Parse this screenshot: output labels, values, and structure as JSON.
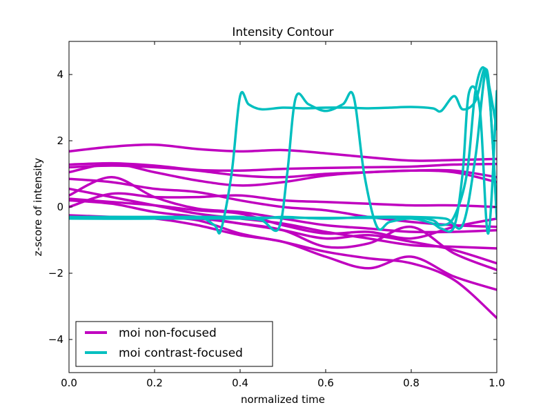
{
  "chart_data": {
    "type": "line",
    "title": "Intensity Contour",
    "xlabel": "normalized time",
    "ylabel": "z-score of intensity",
    "xlim": [
      0.0,
      1.0
    ],
    "ylim": [
      -5,
      5
    ],
    "x_ticks": [
      0.0,
      0.2,
      0.4,
      0.6,
      0.8,
      1.0
    ],
    "x_tick_labels": [
      "0.0",
      "0.2",
      "0.4",
      "0.6",
      "0.8",
      "1.0"
    ],
    "y_ticks": [
      -4,
      -2,
      0,
      2,
      4
    ],
    "y_tick_labels": [
      "−4",
      "−2",
      "0",
      "2",
      "4"
    ],
    "grid": false,
    "legend_position": "lower-left",
    "legend": [
      {
        "label": "moi non-focused",
        "color": "#bf00bf"
      },
      {
        "label": "moi contrast-focused",
        "color": "#00bfbf"
      }
    ],
    "series": [
      {
        "group": 0,
        "color": "#bf00bf",
        "x": [
          0.0,
          0.1,
          0.2,
          0.3,
          0.4,
          0.5,
          0.6,
          0.7,
          0.8,
          0.9,
          1.0
        ],
        "y": [
          1.68,
          1.82,
          1.88,
          1.75,
          1.68,
          1.72,
          1.62,
          1.5,
          1.4,
          1.42,
          1.45
        ]
      },
      {
        "group": 0,
        "color": "#bf00bf",
        "x": [
          0.0,
          0.1,
          0.2,
          0.3,
          0.4,
          0.5,
          0.6,
          0.7,
          0.8,
          0.9,
          1.0
        ],
        "y": [
          1.28,
          1.32,
          1.25,
          1.12,
          1.1,
          1.15,
          1.18,
          1.2,
          1.22,
          1.28,
          1.3
        ]
      },
      {
        "group": 0,
        "color": "#bf00bf",
        "x": [
          0.0,
          0.1,
          0.2,
          0.3,
          0.4,
          0.5,
          0.6,
          0.7,
          0.8,
          0.9,
          1.0
        ],
        "y": [
          1.2,
          1.25,
          1.2,
          1.1,
          0.95,
          0.9,
          1.0,
          1.05,
          1.1,
          1.1,
          0.9
        ]
      },
      {
        "group": 0,
        "color": "#bf00bf",
        "x": [
          0.0,
          0.1,
          0.2,
          0.3,
          0.4,
          0.5,
          0.6,
          0.7,
          0.8,
          0.9,
          1.0
        ],
        "y": [
          1.05,
          1.3,
          1.05,
          0.8,
          0.65,
          0.75,
          0.95,
          1.05,
          1.1,
          1.05,
          0.75
        ]
      },
      {
        "group": 0,
        "color": "#bf00bf",
        "x": [
          0.0,
          0.1,
          0.2,
          0.3,
          0.4,
          0.5,
          0.6,
          0.7,
          0.8,
          0.9,
          1.0
        ],
        "y": [
          0.85,
          0.75,
          0.55,
          0.45,
          0.2,
          0.0,
          -0.1,
          -0.3,
          -0.45,
          -0.55,
          -0.6
        ]
      },
      {
        "group": 0,
        "color": "#bf00bf",
        "x": [
          0.0,
          0.1,
          0.2,
          0.3,
          0.4,
          0.5,
          0.6,
          0.7,
          0.8,
          0.9,
          1.0
        ],
        "y": [
          0.35,
          0.9,
          0.3,
          -0.05,
          -0.15,
          -0.35,
          -0.55,
          -0.65,
          -0.75,
          -0.75,
          -0.7
        ]
      },
      {
        "group": 0,
        "color": "#bf00bf",
        "x": [
          0.0,
          0.1,
          0.2,
          0.3,
          0.4,
          0.5,
          0.6,
          0.7,
          0.8,
          0.9,
          1.0
        ],
        "y": [
          0.55,
          0.3,
          0.05,
          -0.2,
          -0.35,
          -0.5,
          -0.75,
          -0.95,
          -1.15,
          -1.2,
          -1.25
        ]
      },
      {
        "group": 0,
        "color": "#bf00bf",
        "x": [
          0.0,
          0.1,
          0.2,
          0.3,
          0.4,
          0.5,
          0.6,
          0.7,
          0.8,
          0.9,
          1.0
        ],
        "y": [
          0.0,
          0.4,
          0.3,
          0.3,
          0.35,
          0.2,
          0.15,
          0.1,
          0.05,
          0.05,
          0.0
        ]
      },
      {
        "group": 0,
        "color": "#bf00bf",
        "x": [
          0.0,
          0.1,
          0.2,
          0.3,
          0.4,
          0.5,
          0.6,
          0.7,
          0.8,
          0.9,
          1.0
        ],
        "y": [
          0.25,
          0.15,
          0.05,
          -0.1,
          -0.2,
          -0.55,
          -0.8,
          -0.75,
          -0.95,
          -0.6,
          -0.35
        ]
      },
      {
        "group": 0,
        "color": "#bf00bf",
        "x": [
          0.0,
          0.1,
          0.2,
          0.3,
          0.4,
          0.5,
          0.6,
          0.7,
          0.8,
          0.9,
          1.0
        ],
        "y": [
          0.2,
          0.1,
          -0.15,
          -0.3,
          -0.5,
          -0.7,
          -0.95,
          -0.85,
          -1.05,
          -1.3,
          -1.7
        ]
      },
      {
        "group": 0,
        "color": "#bf00bf",
        "x": [
          0.0,
          0.1,
          0.2,
          0.3,
          0.4,
          0.5,
          0.6,
          0.7,
          0.8,
          0.9,
          1.0
        ],
        "y": [
          -0.25,
          -0.3,
          -0.35,
          -0.35,
          -0.5,
          -0.7,
          -1.2,
          -1.1,
          -0.6,
          -1.4,
          -1.9
        ]
      },
      {
        "group": 0,
        "color": "#bf00bf",
        "x": [
          0.0,
          0.1,
          0.2,
          0.3,
          0.4,
          0.5,
          0.6,
          0.7,
          0.8,
          0.9,
          1.0
        ],
        "y": [
          -0.3,
          -0.3,
          -0.35,
          -0.55,
          -0.85,
          -1.05,
          -1.5,
          -1.85,
          -1.5,
          -2.1,
          -2.5
        ]
      },
      {
        "group": 0,
        "color": "#bf00bf",
        "x": [
          0.0,
          0.1,
          0.2,
          0.3,
          0.4,
          0.5,
          0.6,
          0.7,
          0.8,
          0.9,
          1.0
        ],
        "y": [
          -0.3,
          -0.3,
          -0.32,
          -0.4,
          -0.8,
          -1.05,
          -1.35,
          -1.55,
          -1.7,
          -2.2,
          -3.35
        ]
      },
      {
        "group": 1,
        "color": "#00bfbf",
        "x": [
          0.0,
          0.2,
          0.3,
          0.34,
          0.355,
          0.38,
          0.4,
          0.42,
          0.45,
          0.5,
          0.55,
          0.6,
          0.65,
          0.7,
          0.75,
          0.8,
          0.85,
          0.87,
          0.9,
          0.92,
          0.95,
          0.97,
          0.98,
          1.0
        ],
        "y": [
          -0.35,
          -0.35,
          -0.3,
          -0.55,
          -0.7,
          1.0,
          3.35,
          3.1,
          2.95,
          3.0,
          2.98,
          3.0,
          3.0,
          2.98,
          3.0,
          3.02,
          2.98,
          2.9,
          3.35,
          2.95,
          3.2,
          4.15,
          3.8,
          2.35
        ]
      },
      {
        "group": 1,
        "color": "#00bfbf",
        "x": [
          0.0,
          0.3,
          0.4,
          0.45,
          0.49,
          0.51,
          0.53,
          0.56,
          0.6,
          0.64,
          0.665,
          0.69,
          0.72,
          0.75,
          0.8,
          0.85,
          0.87,
          0.9,
          0.92,
          0.935,
          0.96,
          0.98,
          1.0
        ],
        "y": [
          -0.35,
          -0.35,
          -0.35,
          -0.4,
          -0.65,
          1.0,
          3.3,
          3.1,
          2.9,
          3.1,
          3.35,
          1.0,
          -0.6,
          -0.45,
          -0.35,
          -0.5,
          -0.65,
          -0.6,
          1.0,
          3.45,
          3.0,
          -0.8,
          3.5
        ]
      },
      {
        "group": 1,
        "color": "#00bfbf",
        "x": [
          0.0,
          0.2,
          0.4,
          0.6,
          0.8,
          0.85,
          0.87,
          0.9,
          0.93,
          0.95,
          0.97,
          0.985,
          1.0
        ],
        "y": [
          -0.33,
          -0.32,
          -0.32,
          -0.33,
          -0.33,
          -0.4,
          -0.55,
          -0.3,
          1.0,
          3.5,
          4.2,
          3.0,
          -0.35
        ]
      },
      {
        "group": 1,
        "color": "#00bfbf",
        "x": [
          0.0,
          0.3,
          0.37,
          0.4,
          0.45,
          0.5,
          0.6,
          0.7,
          0.8,
          0.88,
          0.92,
          0.95,
          0.975,
          0.99,
          1.0
        ],
        "y": [
          -0.3,
          -0.3,
          -0.3,
          -0.3,
          -0.35,
          -0.3,
          -0.35,
          -0.3,
          -0.3,
          -0.35,
          -0.55,
          1.5,
          4.15,
          2.0,
          -0.35
        ]
      }
    ]
  }
}
